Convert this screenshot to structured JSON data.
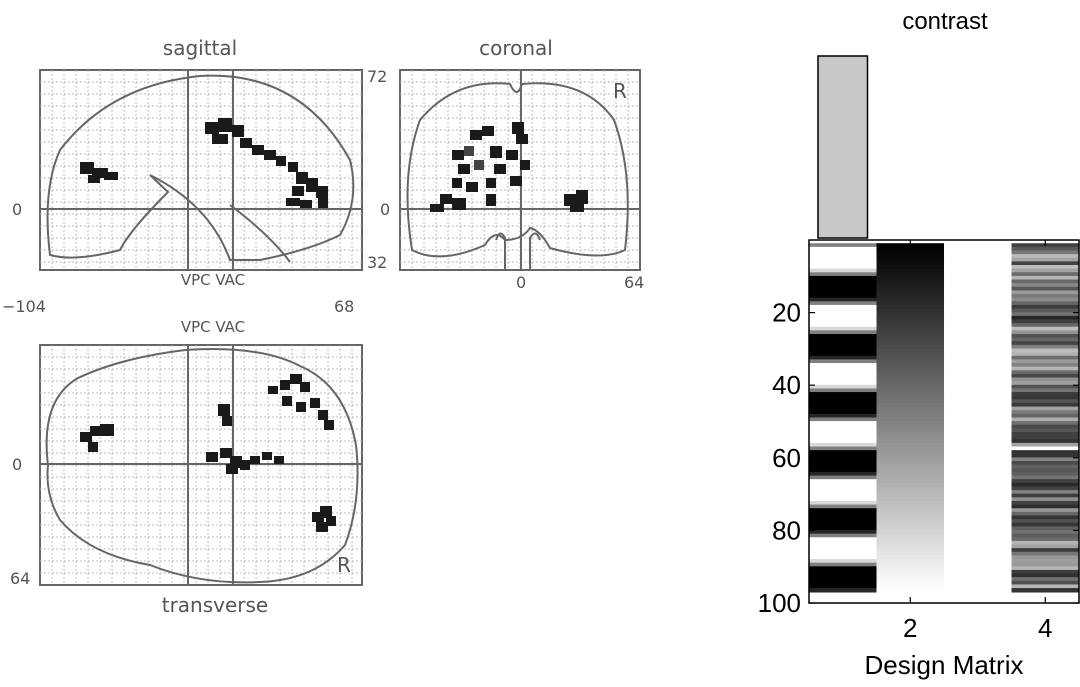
{
  "glass_brain": {
    "sagittal": {
      "title": "sagittal",
      "label_y0": "0",
      "label_top": "72",
      "label_bottom": "32",
      "label_left": "−104",
      "label_right": "68",
      "vpc_vac": "VPC VAC"
    },
    "coronal": {
      "title": "coronal",
      "label_y0": "0",
      "label_x0": "0",
      "label_right": "64",
      "side_marker": "R"
    },
    "transverse": {
      "title": "transverse",
      "vpc_vac": "VPC VAC",
      "label_y0": "0",
      "label_bottom": "64",
      "side_marker": "R"
    }
  },
  "chart_data": {
    "type": "heatmap",
    "title": "contrast",
    "xlabel": "Design Matrix",
    "columns": 4,
    "rows": 96,
    "x_ticks": [
      "2",
      "4"
    ],
    "y_ticks": [
      "20",
      "40",
      "60",
      "80",
      "100"
    ],
    "ylim": [
      0,
      100
    ],
    "contrast_weights": [
      1,
      0,
      0,
      0
    ],
    "block_period_scans": 16,
    "block_length_scans": 8,
    "column_descriptions": [
      "boxcar condition regressor (on/off blocks)",
      "linear ramp regressor",
      "constant term",
      "global/nuisance covariate"
    ]
  }
}
